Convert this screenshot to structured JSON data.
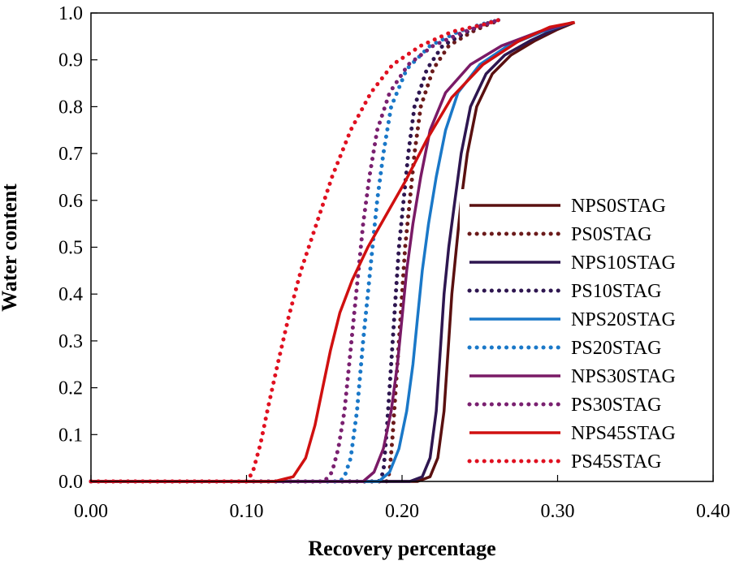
{
  "chart_data": {
    "type": "line",
    "xlabel": "Recovery percentage",
    "ylabel": "Water content",
    "xlim": [
      0,
      0.4
    ],
    "ylim": [
      0,
      1
    ],
    "x_ticks": [
      "0.00",
      "0.10",
      "0.20",
      "0.30",
      "0.40"
    ],
    "y_ticks": [
      "0.0",
      "0.1",
      "0.2",
      "0.3",
      "0.4",
      "0.5",
      "0.6",
      "0.7",
      "0.8",
      "0.9",
      "1.0"
    ],
    "grid": false,
    "legend_position": "right",
    "series": [
      {
        "name": "NPS0STAG",
        "color": "#5a1010",
        "style": "solid",
        "points": [
          [
            0,
            0
          ],
          [
            0.21,
            0
          ],
          [
            0.218,
            0.01
          ],
          [
            0.223,
            0.05
          ],
          [
            0.227,
            0.15
          ],
          [
            0.23,
            0.3
          ],
          [
            0.232,
            0.4
          ],
          [
            0.235,
            0.5
          ],
          [
            0.238,
            0.6
          ],
          [
            0.242,
            0.7
          ],
          [
            0.248,
            0.8
          ],
          [
            0.258,
            0.87
          ],
          [
            0.27,
            0.91
          ],
          [
            0.285,
            0.94
          ],
          [
            0.3,
            0.965
          ],
          [
            0.311,
            0.98
          ]
        ]
      },
      {
        "name": "PS0STAG",
        "color": "#6b1a1a",
        "style": "dotted",
        "points": [
          [
            0,
            0
          ],
          [
            0.19,
            0
          ],
          [
            0.192,
            0.02
          ],
          [
            0.194,
            0.1
          ],
          [
            0.196,
            0.2
          ],
          [
            0.198,
            0.3
          ],
          [
            0.2,
            0.4
          ],
          [
            0.202,
            0.5
          ],
          [
            0.205,
            0.6
          ],
          [
            0.208,
            0.7
          ],
          [
            0.212,
            0.8
          ],
          [
            0.22,
            0.88
          ],
          [
            0.23,
            0.93
          ],
          [
            0.245,
            0.96
          ],
          [
            0.255,
            0.975
          ],
          [
            0.263,
            0.985
          ]
        ]
      },
      {
        "name": "NPS10STAG",
        "color": "#2e1650",
        "style": "solid",
        "points": [
          [
            0,
            0
          ],
          [
            0.205,
            0
          ],
          [
            0.213,
            0.01
          ],
          [
            0.218,
            0.05
          ],
          [
            0.222,
            0.15
          ],
          [
            0.225,
            0.3
          ],
          [
            0.227,
            0.4
          ],
          [
            0.23,
            0.5
          ],
          [
            0.234,
            0.6
          ],
          [
            0.238,
            0.7
          ],
          [
            0.244,
            0.8
          ],
          [
            0.254,
            0.87
          ],
          [
            0.266,
            0.91
          ],
          [
            0.282,
            0.94
          ],
          [
            0.298,
            0.965
          ],
          [
            0.31,
            0.98
          ]
        ]
      },
      {
        "name": "PS10STAG",
        "color": "#2e1650",
        "style": "dotted",
        "points": [
          [
            0,
            0
          ],
          [
            0.185,
            0
          ],
          [
            0.188,
            0.02
          ],
          [
            0.19,
            0.1
          ],
          [
            0.192,
            0.2
          ],
          [
            0.194,
            0.3
          ],
          [
            0.196,
            0.4
          ],
          [
            0.198,
            0.5
          ],
          [
            0.201,
            0.6
          ],
          [
            0.204,
            0.7
          ],
          [
            0.208,
            0.8
          ],
          [
            0.216,
            0.88
          ],
          [
            0.226,
            0.93
          ],
          [
            0.242,
            0.96
          ],
          [
            0.252,
            0.975
          ],
          [
            0.262,
            0.985
          ]
        ]
      },
      {
        "name": "NPS20STAG",
        "color": "#1a78c8",
        "style": "solid",
        "points": [
          [
            0,
            0
          ],
          [
            0.185,
            0
          ],
          [
            0.192,
            0.02
          ],
          [
            0.198,
            0.07
          ],
          [
            0.203,
            0.15
          ],
          [
            0.207,
            0.25
          ],
          [
            0.21,
            0.35
          ],
          [
            0.213,
            0.45
          ],
          [
            0.217,
            0.55
          ],
          [
            0.222,
            0.65
          ],
          [
            0.228,
            0.75
          ],
          [
            0.236,
            0.83
          ],
          [
            0.25,
            0.89
          ],
          [
            0.268,
            0.93
          ],
          [
            0.29,
            0.96
          ],
          [
            0.31,
            0.98
          ]
        ]
      },
      {
        "name": "PS20STAG",
        "color": "#1a78c8",
        "style": "dotted",
        "points": [
          [
            0,
            0
          ],
          [
            0.16,
            0
          ],
          [
            0.163,
            0.01
          ],
          [
            0.167,
            0.05
          ],
          [
            0.171,
            0.15
          ],
          [
            0.175,
            0.3
          ],
          [
            0.178,
            0.4
          ],
          [
            0.181,
            0.5
          ],
          [
            0.184,
            0.6
          ],
          [
            0.188,
            0.7
          ],
          [
            0.193,
            0.8
          ],
          [
            0.203,
            0.88
          ],
          [
            0.218,
            0.93
          ],
          [
            0.236,
            0.96
          ],
          [
            0.25,
            0.975
          ],
          [
            0.262,
            0.985
          ]
        ]
      },
      {
        "name": "NPS30STAG",
        "color": "#7a1a66",
        "style": "solid",
        "points": [
          [
            0,
            0
          ],
          [
            0.175,
            0
          ],
          [
            0.182,
            0.02
          ],
          [
            0.188,
            0.07
          ],
          [
            0.193,
            0.15
          ],
          [
            0.197,
            0.25
          ],
          [
            0.2,
            0.35
          ],
          [
            0.203,
            0.45
          ],
          [
            0.207,
            0.55
          ],
          [
            0.212,
            0.65
          ],
          [
            0.218,
            0.75
          ],
          [
            0.228,
            0.83
          ],
          [
            0.244,
            0.89
          ],
          [
            0.264,
            0.93
          ],
          [
            0.288,
            0.96
          ],
          [
            0.31,
            0.98
          ]
        ]
      },
      {
        "name": "PS30STAG",
        "color": "#7a2070",
        "style": "dotted",
        "points": [
          [
            0,
            0
          ],
          [
            0.15,
            0
          ],
          [
            0.155,
            0.02
          ],
          [
            0.159,
            0.07
          ],
          [
            0.163,
            0.15
          ],
          [
            0.166,
            0.25
          ],
          [
            0.169,
            0.35
          ],
          [
            0.172,
            0.45
          ],
          [
            0.175,
            0.55
          ],
          [
            0.179,
            0.65
          ],
          [
            0.184,
            0.75
          ],
          [
            0.192,
            0.83
          ],
          [
            0.204,
            0.89
          ],
          [
            0.22,
            0.93
          ],
          [
            0.24,
            0.96
          ],
          [
            0.262,
            0.985
          ]
        ]
      },
      {
        "name": "NPS45STAG",
        "color": "#d01010",
        "style": "solid",
        "points": [
          [
            0,
            0
          ],
          [
            0.118,
            0
          ],
          [
            0.13,
            0.01
          ],
          [
            0.138,
            0.05
          ],
          [
            0.144,
            0.12
          ],
          [
            0.149,
            0.2
          ],
          [
            0.154,
            0.28
          ],
          [
            0.16,
            0.36
          ],
          [
            0.168,
            0.43
          ],
          [
            0.178,
            0.5
          ],
          [
            0.19,
            0.57
          ],
          [
            0.202,
            0.64
          ],
          [
            0.216,
            0.73
          ],
          [
            0.232,
            0.82
          ],
          [
            0.252,
            0.89
          ],
          [
            0.275,
            0.94
          ],
          [
            0.295,
            0.97
          ],
          [
            0.311,
            0.98
          ]
        ]
      },
      {
        "name": "PS45STAG",
        "color": "#e01020",
        "style": "dotted",
        "points": [
          [
            0,
            0
          ],
          [
            0.1,
            0
          ],
          [
            0.104,
            0.02
          ],
          [
            0.109,
            0.08
          ],
          [
            0.114,
            0.16
          ],
          [
            0.12,
            0.25
          ],
          [
            0.127,
            0.35
          ],
          [
            0.135,
            0.45
          ],
          [
            0.145,
            0.55
          ],
          [
            0.155,
            0.65
          ],
          [
            0.167,
            0.75
          ],
          [
            0.18,
            0.83
          ],
          [
            0.194,
            0.89
          ],
          [
            0.212,
            0.93
          ],
          [
            0.232,
            0.96
          ],
          [
            0.252,
            0.975
          ],
          [
            0.262,
            0.985
          ]
        ]
      }
    ]
  }
}
